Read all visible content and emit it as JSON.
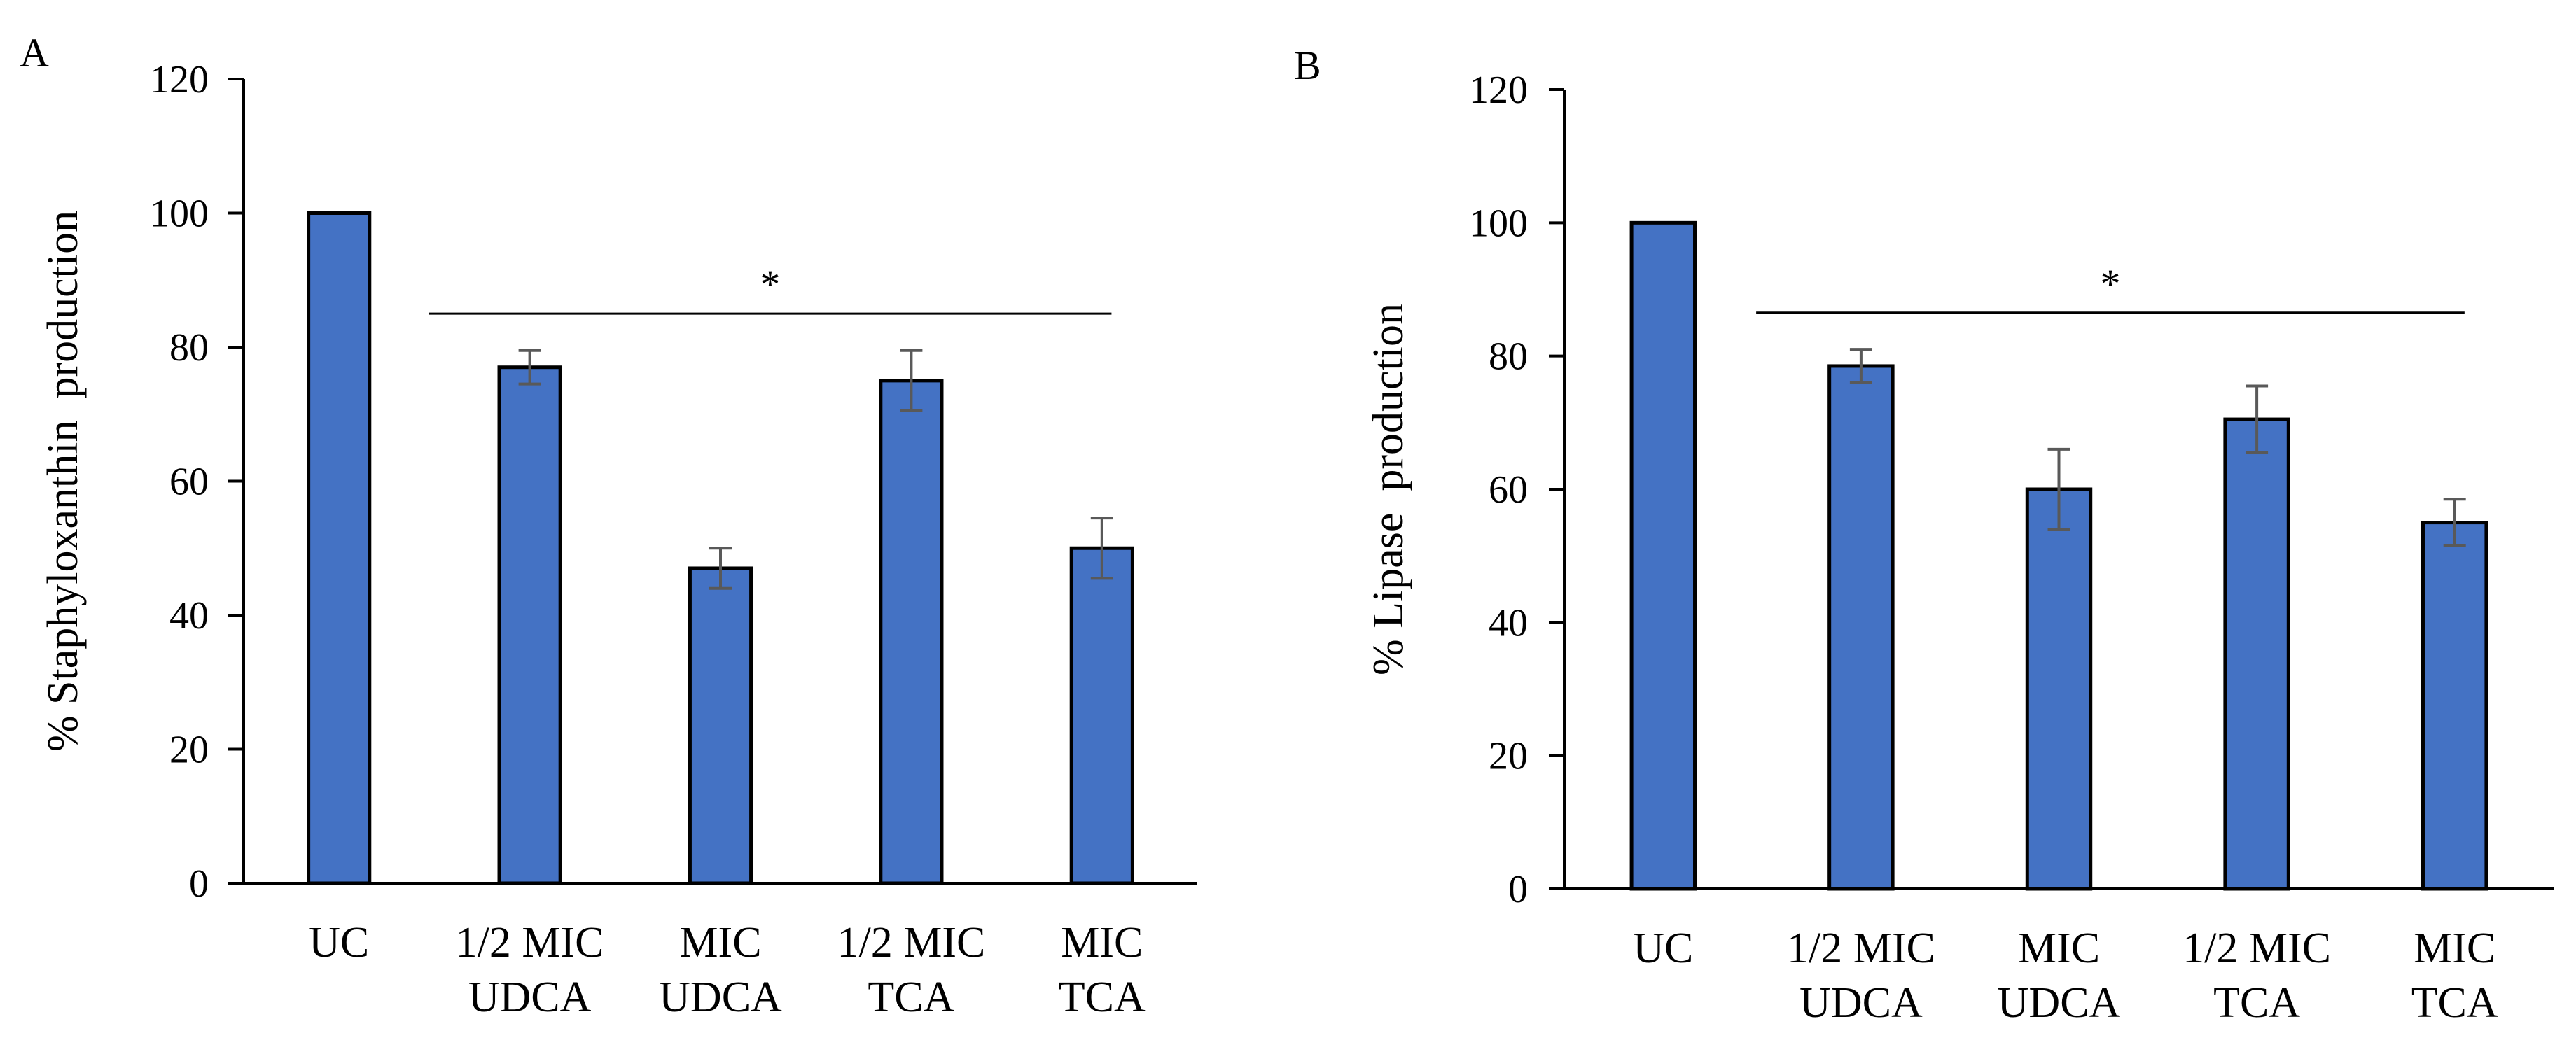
{
  "chart_data": [
    {
      "type": "bar",
      "panel": "A",
      "ylabel": "% Staphyloxanthin  production",
      "xlabel": "",
      "ylim": [
        0,
        120
      ],
      "yticks": [
        0,
        20,
        40,
        60,
        80,
        100,
        120
      ],
      "categories": [
        [
          "UC"
        ],
        [
          "1/2 MIC",
          "UDCA"
        ],
        [
          "MIC",
          "UDCA"
        ],
        [
          "1/2 MIC",
          "TCA"
        ],
        [
          "MIC",
          "TCA"
        ]
      ],
      "values": [
        100,
        77,
        47,
        75,
        50
      ],
      "errors": [
        0,
        2.5,
        3,
        4.5,
        4.5
      ],
      "significance": {
        "label": "*",
        "from_category": 1,
        "to_category": 4,
        "level": 85
      }
    },
    {
      "type": "bar",
      "panel": "B",
      "ylabel": "% Lipase  production",
      "xlabel": "",
      "ylim": [
        0,
        120
      ],
      "yticks": [
        0,
        20,
        40,
        60,
        80,
        100,
        120
      ],
      "categories": [
        [
          "UC"
        ],
        [
          "1/2 MIC",
          "UDCA"
        ],
        [
          "MIC",
          "UDCA"
        ],
        [
          "1/2 MIC",
          "TCA"
        ],
        [
          "MIC",
          "TCA"
        ]
      ],
      "values": [
        100,
        78.5,
        60,
        70.5,
        55
      ],
      "errors": [
        0,
        2.5,
        6,
        5,
        3.5
      ],
      "significance": {
        "label": "*",
        "from_category": 1,
        "to_category": 4,
        "level": 86.5
      }
    }
  ],
  "colors": {
    "bar_fill": "#4472C4",
    "bar_stroke": "#000000",
    "error_bar": "#595959",
    "axis": "#000000"
  }
}
